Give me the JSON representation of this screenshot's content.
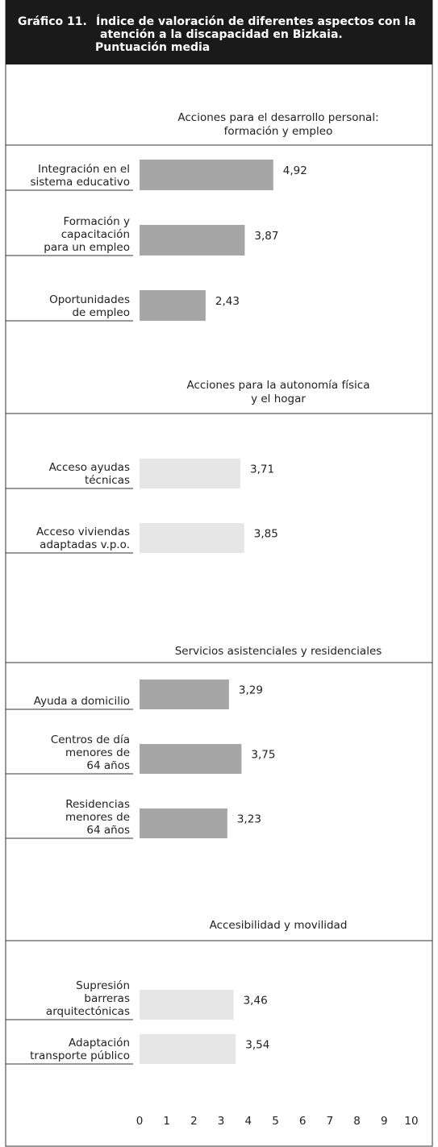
{
  "chart_data": {
    "type": "bar",
    "orientation": "horizontal",
    "label": "Gráfico 11.",
    "title": [
      "Índice de valoración de diferentes aspectos con la",
      "atención a la discapacidad en Bizkaia.",
      "Puntuación media"
    ],
    "xlim": [
      0,
      10
    ],
    "xticks": [
      0,
      1,
      2,
      3,
      4,
      5,
      6,
      7,
      8,
      9,
      10
    ],
    "groups": [
      {
        "name": [
          "Acciones para el desarrollo personal:",
          "formación y empleo"
        ],
        "color": "#a6a6a6",
        "categories": [
          [
            "Integración en el",
            "sistema educativo"
          ],
          [
            "Formación y",
            "capacitación",
            "para un empleo"
          ],
          [
            "Oportunidades",
            "de empleo"
          ]
        ],
        "values": [
          4.92,
          3.87,
          2.43
        ],
        "value_labels": [
          "4,92",
          "3,87",
          "2,43"
        ]
      },
      {
        "name": [
          "Acciones para la autonomía física",
          "y el hogar"
        ],
        "color": "#e6e6e6",
        "categories": [
          [
            "Acceso ayudas",
            "técnicas"
          ],
          [
            "Acceso viviendas",
            "adaptadas v.p.o."
          ]
        ],
        "values": [
          3.71,
          3.85
        ],
        "value_labels": [
          "3,71",
          "3,85"
        ]
      },
      {
        "name": [
          "Servicios asistenciales y residenciales"
        ],
        "color": "#a6a6a6",
        "categories": [
          [
            "Ayuda a domicilio"
          ],
          [
            "Centros de día",
            "menores de",
            "64 años"
          ],
          [
            "Residencias",
            "menores de",
            "64 años"
          ]
        ],
        "values": [
          3.29,
          3.75,
          3.23
        ],
        "value_labels": [
          "3,29",
          "3,75",
          "3,23"
        ]
      },
      {
        "name": [
          "Accesibilidad y movilidad"
        ],
        "color": "#e6e6e6",
        "categories": [
          [
            "Supresión",
            "barreras",
            "arquitectónicas"
          ],
          [
            "Adaptación",
            "transporte público"
          ]
        ],
        "values": [
          3.46,
          3.54
        ],
        "value_labels": [
          "3,46",
          "3,54"
        ]
      }
    ]
  }
}
